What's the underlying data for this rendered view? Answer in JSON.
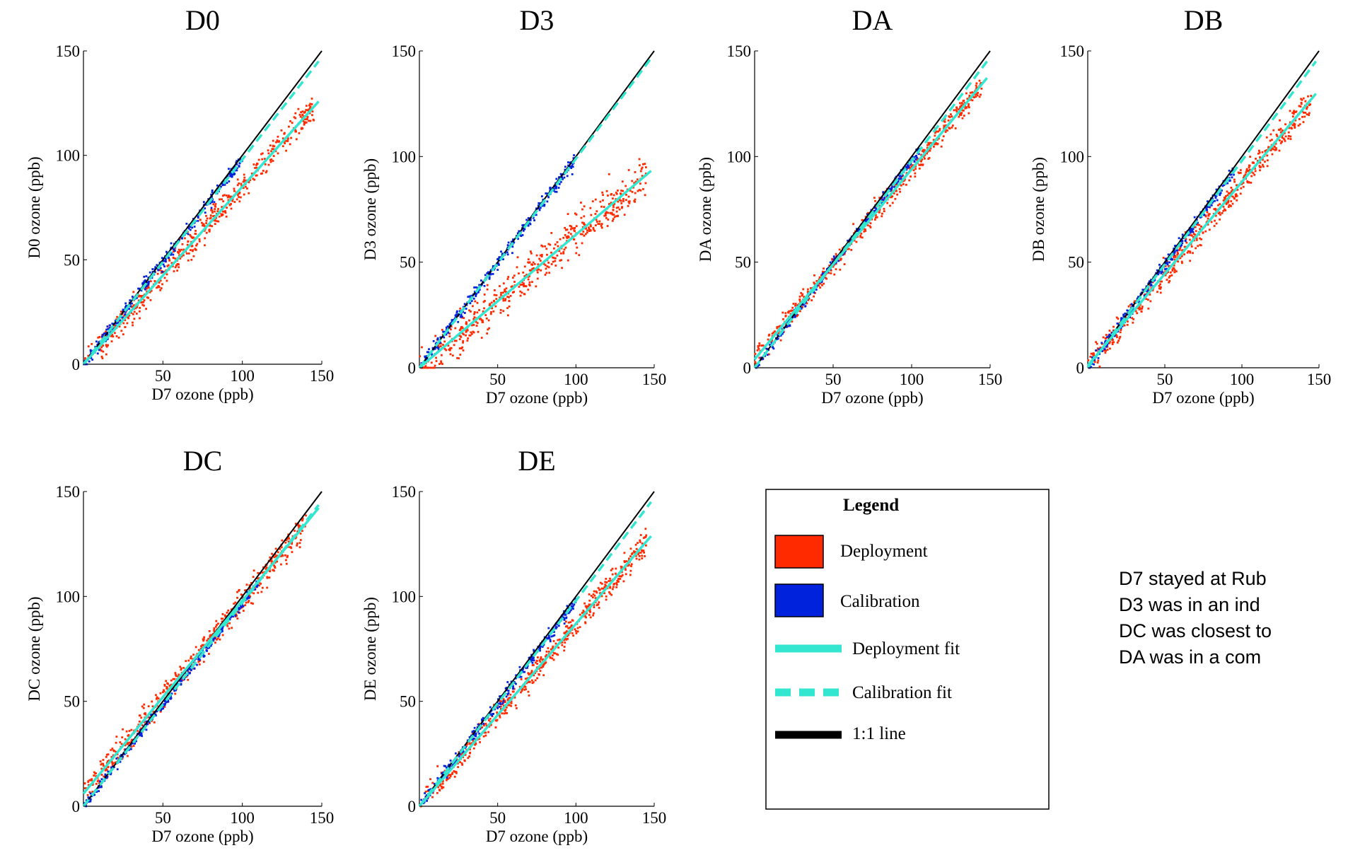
{
  "legend": {
    "title": "Legend",
    "items": [
      {
        "label": "Deployment",
        "kind": "box",
        "color": "#ff2a00"
      },
      {
        "label": "Calibration",
        "kind": "box",
        "color": "#0022dd"
      },
      {
        "label": "Deployment fit",
        "kind": "solid",
        "color": "#33e6d0"
      },
      {
        "label": "Calibration fit",
        "kind": "dashed",
        "color": "#33e6d0"
      },
      {
        "label": "1:1 line",
        "kind": "solid",
        "color": "#000000"
      }
    ]
  },
  "notes": [
    "D7 stayed at Rub",
    "D3 was in an ind",
    "DC was closest to",
    "DA was in a com"
  ],
  "colors": {
    "deployment": "#ff2a00",
    "calibration": "#0022dd",
    "fit": "#33e6d0",
    "one_to_one": "#000000"
  },
  "chart_data": [
    {
      "type": "scatter",
      "title": "D0",
      "xlabel": "D7 ozone (ppb)",
      "ylabel": "D0 ozone (ppb)",
      "xlim": [
        0,
        150
      ],
      "ylim": [
        0,
        150
      ],
      "xticks": [
        50,
        100,
        150
      ],
      "yticks": [
        0,
        50,
        100,
        150
      ],
      "series": [
        {
          "name": "Deployment",
          "x_range": [
            0,
            145
          ],
          "fit": {
            "slope": 0.85,
            "intercept": 0
          },
          "spread": 9
        },
        {
          "name": "Calibration",
          "x_range": [
            0,
            100
          ],
          "fit": {
            "slope": 0.98,
            "intercept": 0
          },
          "spread": 4
        }
      ]
    },
    {
      "type": "scatter",
      "title": "D3",
      "xlabel": "D7 ozone (ppb)",
      "ylabel": "D3 ozone (ppb)",
      "xlim": [
        0,
        150
      ],
      "ylim": [
        0,
        150
      ],
      "xticks": [
        50,
        100,
        150
      ],
      "yticks": [
        0,
        50,
        100,
        150
      ],
      "series": [
        {
          "name": "Deployment",
          "x_range": [
            0,
            145
          ],
          "fit": {
            "slope": 0.63,
            "intercept": 0
          },
          "spread": 14
        },
        {
          "name": "Calibration",
          "x_range": [
            0,
            100
          ],
          "fit": {
            "slope": 0.99,
            "intercept": 0
          },
          "spread": 4
        }
      ]
    },
    {
      "type": "scatter",
      "title": "DA",
      "xlabel": "D7 ozone (ppb)",
      "ylabel": "DA ozone (ppb)",
      "xlim": [
        0,
        150
      ],
      "ylim": [
        0,
        150
      ],
      "xticks": [
        50,
        100,
        150
      ],
      "yticks": [
        0,
        50,
        100,
        150
      ],
      "series": [
        {
          "name": "Deployment",
          "x_range": [
            0,
            145
          ],
          "fit": {
            "slope": 0.9,
            "intercept": 4
          },
          "spread": 7
        },
        {
          "name": "Calibration",
          "x_range": [
            0,
            105
          ],
          "fit": {
            "slope": 0.98,
            "intercept": 0
          },
          "spread": 3
        }
      ]
    },
    {
      "type": "scatter",
      "title": "DB",
      "xlabel": "D7 ozone (ppb)",
      "ylabel": "DB ozone (ppb)",
      "xlim": [
        0,
        150
      ],
      "ylim": [
        0,
        150
      ],
      "xticks": [
        50,
        100,
        150
      ],
      "yticks": [
        0,
        50,
        100,
        150
      ],
      "series": [
        {
          "name": "Deployment",
          "x_range": [
            0,
            145
          ],
          "fit": {
            "slope": 0.87,
            "intercept": 1
          },
          "spread": 9
        },
        {
          "name": "Calibration",
          "x_range": [
            0,
            95
          ],
          "fit": {
            "slope": 0.98,
            "intercept": 0
          },
          "spread": 4
        }
      ]
    },
    {
      "type": "scatter",
      "title": "DC",
      "xlabel": "D7 ozone (ppb)",
      "ylabel": "DC ozone (ppb)",
      "xlim": [
        0,
        150
      ],
      "ylim": [
        0,
        150
      ],
      "xticks": [
        50,
        100,
        150
      ],
      "yticks": [
        0,
        50,
        100,
        150
      ],
      "series": [
        {
          "name": "Deployment",
          "x_range": [
            0,
            140
          ],
          "fit": {
            "slope": 0.92,
            "intercept": 6
          },
          "spread": 9
        },
        {
          "name": "Calibration",
          "x_range": [
            0,
            110
          ],
          "fit": {
            "slope": 0.97,
            "intercept": 0
          },
          "spread": 3
        }
      ]
    },
    {
      "type": "scatter",
      "title": "DE",
      "xlabel": "D7 ozone (ppb)",
      "ylabel": "DE ozone (ppb)",
      "xlim": [
        0,
        150
      ],
      "ylim": [
        0,
        150
      ],
      "xticks": [
        50,
        100,
        150
      ],
      "yticks": [
        0,
        50,
        100,
        150
      ],
      "series": [
        {
          "name": "Deployment",
          "x_range": [
            0,
            145
          ],
          "fit": {
            "slope": 0.87,
            "intercept": 0
          },
          "spread": 8
        },
        {
          "name": "Calibration",
          "x_range": [
            0,
            100
          ],
          "fit": {
            "slope": 0.98,
            "intercept": 0
          },
          "spread": 4
        }
      ]
    }
  ]
}
